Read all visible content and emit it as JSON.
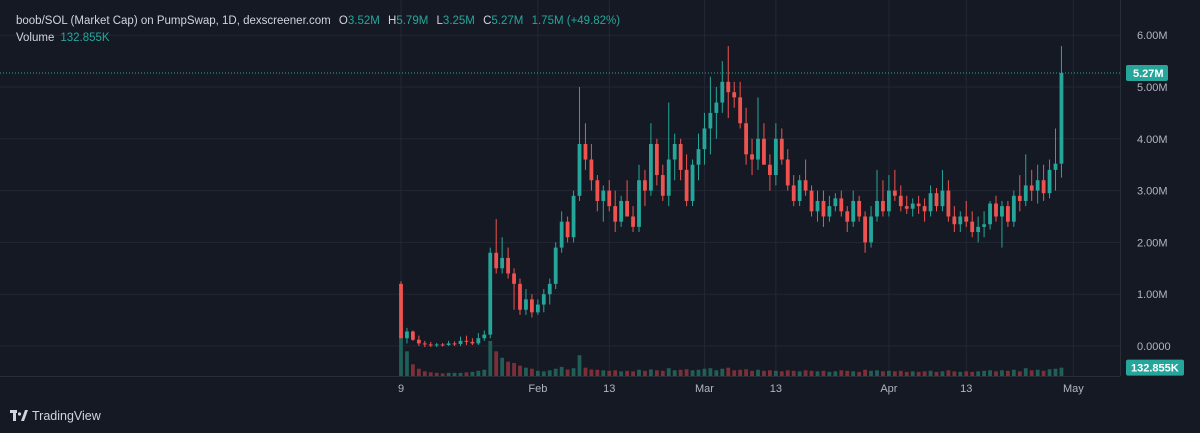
{
  "legend": {
    "title": "boob/SOL (Market Cap) on PumpSwap, 1D, dexscreener.com",
    "o_label": "O",
    "o_value": "3.52M",
    "h_label": "H",
    "h_value": "5.79M",
    "l_label": "L",
    "l_value": "3.25M",
    "c_label": "C",
    "c_value": "5.27M",
    "change": "1.75M (+49.82%)"
  },
  "volume": {
    "label": "Volume",
    "value": "132.855K"
  },
  "branding": {
    "name": "TradingView",
    "logo_icon": "tradingview-logo-icon"
  },
  "colors": {
    "up": "#26a69a",
    "down": "#ef5350",
    "up_volume": "#1f5f57",
    "down_volume": "#7d2f37",
    "background": "#151924",
    "grid": "#232735",
    "axis_text": "#b2b5be"
  },
  "chart_data": {
    "type": "candlestick",
    "price_axis": {
      "ticks": [
        0,
        1,
        2,
        3,
        4,
        5,
        6
      ],
      "tick_labels": [
        "0.0000",
        "1.00M",
        "2.00M",
        "3.00M",
        "4.00M",
        "5.00M",
        "6.00M"
      ],
      "unit": "M"
    },
    "time_axis": {
      "labels": [
        "9",
        "Feb",
        "13",
        "Mar",
        "13",
        "Apr",
        "13",
        "May"
      ],
      "label_day_index": [
        0,
        23,
        35,
        51,
        63,
        82,
        95,
        113
      ]
    },
    "last_price_label": "5.27M",
    "last_volume_label": "132.855K",
    "grid": true,
    "candles": [
      [
        1.2,
        1.25,
        0.2,
        0.15
      ],
      [
        0.15,
        0.35,
        0.05,
        0.28
      ],
      [
        0.28,
        0.3,
        0.1,
        0.12
      ],
      [
        0.12,
        0.2,
        0.0,
        0.05
      ],
      [
        0.05,
        0.1,
        -0.02,
        0.03
      ],
      [
        0.03,
        0.08,
        -0.02,
        0.02
      ],
      [
        0.02,
        0.06,
        -0.02,
        0.03
      ],
      [
        0.03,
        0.06,
        -0.01,
        0.02
      ],
      [
        0.02,
        0.1,
        0.0,
        0.05
      ],
      [
        0.05,
        0.09,
        0.0,
        0.04
      ],
      [
        0.04,
        0.18,
        0.0,
        0.1
      ],
      [
        0.1,
        0.2,
        0.02,
        0.08
      ],
      [
        0.08,
        0.15,
        0.02,
        0.05
      ],
      [
        0.05,
        0.25,
        0.02,
        0.15
      ],
      [
        0.15,
        0.3,
        0.1,
        0.22
      ],
      [
        0.22,
        1.9,
        0.15,
        1.8
      ],
      [
        1.8,
        2.45,
        1.4,
        1.5
      ],
      [
        1.5,
        2.1,
        1.4,
        1.7
      ],
      [
        1.7,
        1.9,
        1.3,
        1.4
      ],
      [
        1.4,
        1.5,
        0.7,
        1.2
      ],
      [
        1.2,
        1.3,
        0.6,
        0.7
      ],
      [
        0.7,
        1.1,
        0.6,
        0.9
      ],
      [
        0.9,
        1.0,
        0.55,
        0.65
      ],
      [
        0.65,
        0.9,
        0.6,
        0.8
      ],
      [
        0.8,
        1.1,
        0.65,
        1.0
      ],
      [
        1.0,
        1.3,
        0.8,
        1.2
      ],
      [
        1.2,
        2.0,
        1.1,
        1.9
      ],
      [
        1.9,
        2.6,
        1.8,
        2.4
      ],
      [
        2.4,
        2.5,
        2.0,
        2.1
      ],
      [
        2.1,
        3.0,
        2.0,
        2.9
      ],
      [
        2.9,
        5.0,
        2.8,
        3.9
      ],
      [
        3.9,
        4.3,
        3.4,
        3.6
      ],
      [
        3.6,
        3.9,
        3.0,
        3.2
      ],
      [
        3.2,
        3.3,
        2.6,
        2.8
      ],
      [
        2.8,
        3.1,
        2.4,
        3.0
      ],
      [
        3.0,
        3.2,
        2.6,
        2.7
      ],
      [
        2.7,
        3.0,
        2.2,
        2.4
      ],
      [
        2.4,
        2.9,
        2.3,
        2.8
      ],
      [
        2.8,
        3.2,
        2.5,
        2.5
      ],
      [
        2.5,
        2.7,
        2.2,
        2.3
      ],
      [
        2.3,
        3.5,
        2.2,
        3.2
      ],
      [
        3.2,
        3.4,
        2.7,
        3.0
      ],
      [
        3.0,
        4.3,
        2.9,
        3.9
      ],
      [
        3.9,
        4.0,
        3.1,
        3.3
      ],
      [
        3.3,
        3.5,
        2.8,
        2.9
      ],
      [
        2.9,
        4.7,
        2.7,
        3.6
      ],
      [
        3.6,
        4.1,
        3.2,
        3.9
      ],
      [
        3.9,
        4.0,
        3.2,
        3.4
      ],
      [
        3.4,
        3.7,
        2.7,
        2.8
      ],
      [
        2.8,
        3.6,
        2.7,
        3.5
      ],
      [
        3.5,
        4.1,
        3.2,
        3.8
      ],
      [
        3.8,
        4.5,
        3.5,
        4.2
      ],
      [
        4.2,
        5.2,
        3.7,
        4.5
      ],
      [
        4.5,
        5.0,
        4.0,
        4.7
      ],
      [
        4.7,
        5.5,
        4.5,
        5.1
      ],
      [
        5.1,
        5.79,
        4.4,
        4.9
      ],
      [
        4.9,
        5.1,
        4.6,
        4.8
      ],
      [
        4.8,
        5.1,
        4.2,
        4.3
      ],
      [
        4.3,
        4.6,
        3.5,
        3.7
      ],
      [
        3.7,
        4.0,
        3.3,
        3.6
      ],
      [
        3.6,
        4.8,
        3.4,
        4.0
      ],
      [
        4.0,
        4.3,
        3.5,
        3.5
      ],
      [
        3.5,
        3.7,
        3.0,
        3.3
      ],
      [
        3.3,
        4.3,
        3.1,
        4.0
      ],
      [
        4.0,
        4.2,
        3.5,
        3.6
      ],
      [
        3.6,
        3.8,
        3.0,
        3.1
      ],
      [
        3.1,
        3.3,
        2.7,
        2.8
      ],
      [
        2.8,
        3.3,
        2.7,
        3.2
      ],
      [
        3.2,
        3.6,
        2.9,
        3.0
      ],
      [
        3.0,
        3.1,
        2.5,
        2.6
      ],
      [
        2.6,
        3.0,
        2.4,
        2.8
      ],
      [
        2.8,
        3.0,
        2.3,
        2.5
      ],
      [
        2.5,
        2.9,
        2.4,
        2.7
      ],
      [
        2.7,
        2.95,
        2.6,
        2.85
      ],
      [
        2.85,
        3.0,
        2.5,
        2.6
      ],
      [
        2.6,
        2.7,
        2.2,
        2.4
      ],
      [
        2.4,
        3.0,
        2.3,
        2.8
      ],
      [
        2.8,
        2.9,
        2.4,
        2.5
      ],
      [
        2.5,
        2.6,
        1.8,
        2.0
      ],
      [
        2.0,
        2.7,
        1.9,
        2.5
      ],
      [
        2.5,
        3.4,
        2.4,
        2.8
      ],
      [
        2.8,
        3.2,
        2.5,
        2.6
      ],
      [
        2.6,
        3.3,
        2.5,
        3.0
      ],
      [
        3.0,
        3.4,
        2.8,
        2.9
      ],
      [
        2.9,
        3.1,
        2.6,
        2.7
      ],
      [
        2.7,
        2.9,
        2.55,
        2.65
      ],
      [
        2.65,
        2.85,
        2.5,
        2.75
      ],
      [
        2.75,
        2.9,
        2.55,
        2.7
      ],
      [
        2.7,
        2.85,
        2.4,
        2.6
      ],
      [
        2.6,
        3.1,
        2.5,
        2.95
      ],
      [
        2.95,
        3.05,
        2.6,
        2.7
      ],
      [
        2.7,
        3.4,
        2.6,
        3.0
      ],
      [
        3.0,
        3.2,
        2.4,
        2.5
      ],
      [
        2.5,
        2.7,
        2.2,
        2.35
      ],
      [
        2.35,
        2.6,
        2.2,
        2.5
      ],
      [
        2.5,
        2.8,
        2.3,
        2.4
      ],
      [
        2.4,
        2.6,
        2.1,
        2.2
      ],
      [
        2.2,
        2.5,
        2.0,
        2.3
      ],
      [
        2.3,
        2.6,
        2.1,
        2.35
      ],
      [
        2.35,
        2.8,
        2.25,
        2.75
      ],
      [
        2.75,
        2.9,
        2.4,
        2.5
      ],
      [
        2.5,
        2.8,
        1.9,
        2.7
      ],
      [
        2.7,
        2.8,
        2.3,
        2.4
      ],
      [
        2.4,
        3.0,
        2.3,
        2.9
      ],
      [
        2.9,
        3.3,
        2.6,
        2.8
      ],
      [
        2.8,
        3.7,
        2.7,
        3.1
      ],
      [
        3.1,
        3.4,
        2.8,
        3.0
      ],
      [
        3.0,
        3.5,
        2.75,
        3.2
      ],
      [
        3.2,
        3.5,
        2.8,
        2.95
      ],
      [
        2.95,
        3.6,
        2.85,
        3.4
      ],
      [
        3.4,
        4.2,
        3.0,
        3.52
      ],
      [
        3.52,
        5.79,
        3.25,
        5.27
      ]
    ],
    "volume_bars": [
      [
        1.55,
        1
      ],
      [
        0.95,
        1
      ],
      [
        0.45,
        0
      ],
      [
        0.28,
        0
      ],
      [
        0.18,
        0
      ],
      [
        0.14,
        0
      ],
      [
        0.12,
        0
      ],
      [
        0.1,
        0
      ],
      [
        0.12,
        1
      ],
      [
        0.12,
        1
      ],
      [
        0.12,
        1
      ],
      [
        0.14,
        0
      ],
      [
        0.16,
        1
      ],
      [
        0.2,
        1
      ],
      [
        0.24,
        1
      ],
      [
        1.35,
        1
      ],
      [
        0.95,
        0
      ],
      [
        0.7,
        1
      ],
      [
        0.55,
        0
      ],
      [
        0.5,
        0
      ],
      [
        0.4,
        0
      ],
      [
        0.32,
        1
      ],
      [
        0.28,
        0
      ],
      [
        0.2,
        1
      ],
      [
        0.18,
        1
      ],
      [
        0.22,
        1
      ],
      [
        0.28,
        1
      ],
      [
        0.35,
        1
      ],
      [
        0.25,
        0
      ],
      [
        0.3,
        1
      ],
      [
        0.8,
        1
      ],
      [
        0.32,
        0
      ],
      [
        0.25,
        0
      ],
      [
        0.24,
        0
      ],
      [
        0.22,
        1
      ],
      [
        0.2,
        0
      ],
      [
        0.22,
        0
      ],
      [
        0.18,
        1
      ],
      [
        0.2,
        0
      ],
      [
        0.18,
        0
      ],
      [
        0.24,
        1
      ],
      [
        0.2,
        0
      ],
      [
        0.25,
        1
      ],
      [
        0.22,
        0
      ],
      [
        0.2,
        0
      ],
      [
        0.3,
        1
      ],
      [
        0.22,
        1
      ],
      [
        0.24,
        0
      ],
      [
        0.26,
        0
      ],
      [
        0.22,
        1
      ],
      [
        0.24,
        1
      ],
      [
        0.28,
        1
      ],
      [
        0.3,
        1
      ],
      [
        0.22,
        1
      ],
      [
        0.28,
        1
      ],
      [
        0.32,
        0
      ],
      [
        0.22,
        0
      ],
      [
        0.24,
        0
      ],
      [
        0.26,
        0
      ],
      [
        0.2,
        0
      ],
      [
        0.24,
        1
      ],
      [
        0.2,
        0
      ],
      [
        0.22,
        0
      ],
      [
        0.2,
        1
      ],
      [
        0.18,
        0
      ],
      [
        0.22,
        0
      ],
      [
        0.2,
        0
      ],
      [
        0.18,
        1
      ],
      [
        0.22,
        0
      ],
      [
        0.2,
        0
      ],
      [
        0.18,
        1
      ],
      [
        0.2,
        0
      ],
      [
        0.16,
        1
      ],
      [
        0.18,
        1
      ],
      [
        0.22,
        0
      ],
      [
        0.2,
        0
      ],
      [
        0.18,
        1
      ],
      [
        0.16,
        0
      ],
      [
        0.24,
        0
      ],
      [
        0.2,
        1
      ],
      [
        0.22,
        1
      ],
      [
        0.18,
        0
      ],
      [
        0.2,
        1
      ],
      [
        0.18,
        0
      ],
      [
        0.2,
        0
      ],
      [
        0.16,
        0
      ],
      [
        0.18,
        1
      ],
      [
        0.16,
        0
      ],
      [
        0.18,
        0
      ],
      [
        0.2,
        1
      ],
      [
        0.16,
        0
      ],
      [
        0.18,
        1
      ],
      [
        0.22,
        0
      ],
      [
        0.18,
        0
      ],
      [
        0.16,
        1
      ],
      [
        0.18,
        0
      ],
      [
        0.16,
        0
      ],
      [
        0.18,
        1
      ],
      [
        0.2,
        1
      ],
      [
        0.22,
        1
      ],
      [
        0.18,
        0
      ],
      [
        0.22,
        1
      ],
      [
        0.2,
        0
      ],
      [
        0.24,
        1
      ],
      [
        0.18,
        0
      ],
      [
        0.3,
        1
      ],
      [
        0.22,
        0
      ],
      [
        0.24,
        1
      ],
      [
        0.2,
        0
      ],
      [
        0.26,
        1
      ],
      [
        0.28,
        1
      ],
      [
        0.32,
        1
      ]
    ]
  }
}
